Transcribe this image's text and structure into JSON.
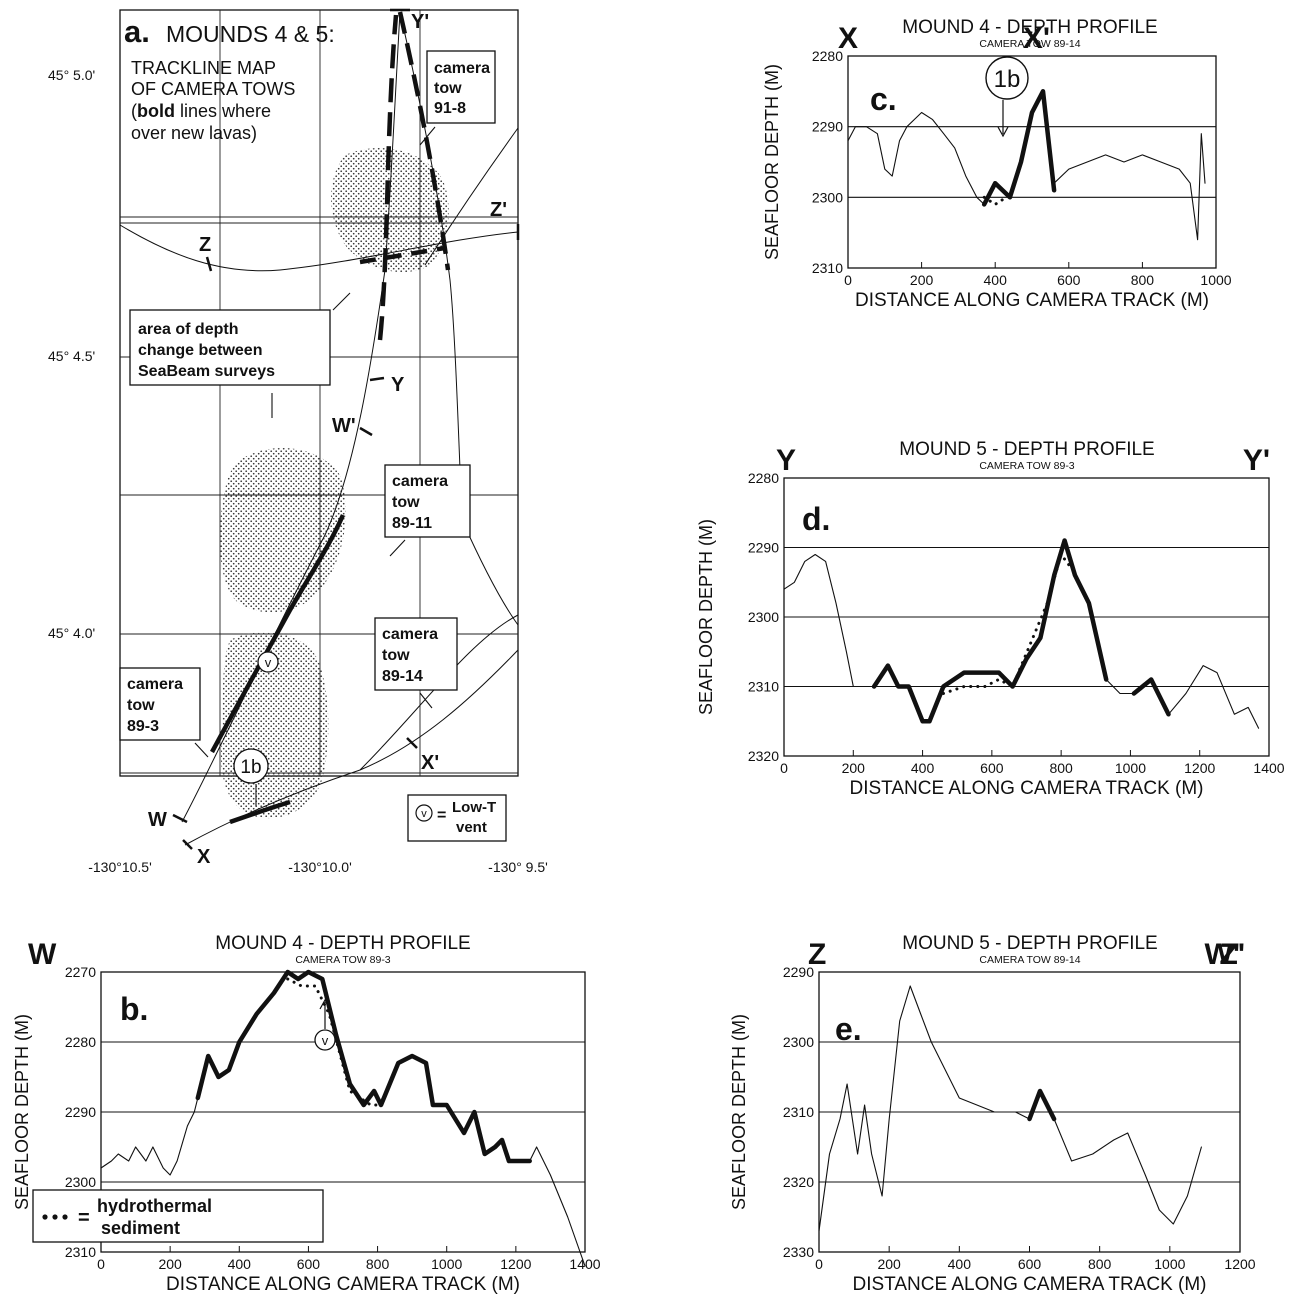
{
  "map": {
    "panel_letter": "a.",
    "title_line1": "MOUNDS 4 & 5:",
    "title_line2": "TRACKLINE MAP",
    "title_line3": "OF CAMERA TOWS",
    "title_line4_bold": "bold",
    "title_line4_rest": " lines where)",
    "title_line4_open": "(",
    "title_line5": "over new lavas)",
    "lat_labels": [
      "45° 5.0'",
      "45° 4.5'",
      "45° 4.0'"
    ],
    "lon_labels": [
      "-130°10.5'",
      "-130°10.0'",
      "-130° 9.5'"
    ],
    "point_labels": [
      "Y'",
      "Z'",
      "Z",
      "Y",
      "W'",
      "X'",
      "W",
      "X"
    ],
    "callout_91_8": [
      "camera",
      "tow",
      "91-8"
    ],
    "callout_89_11": [
      "camera",
      "tow",
      "89-11"
    ],
    "callout_89_14": [
      "camera",
      "tow",
      "89-14"
    ],
    "callout_89_3": [
      "camera",
      "tow",
      "89-3"
    ],
    "callout_area": [
      "area of depth",
      "change between",
      "SeaBeam surveys"
    ],
    "marker_1b": "1b",
    "marker_v": "v",
    "legend_eq": "=",
    "legend_text": [
      "Low-T",
      "vent"
    ]
  },
  "legend_sediment": {
    "eq": "=",
    "lines": [
      "hydrothermal",
      "sediment"
    ]
  },
  "chart_data": [
    {
      "type": "line",
      "panel": "b.",
      "title": "MOUND 4 - DEPTH PROFILE",
      "subtitle": "CAMERA TOW 89-3",
      "left_end": "W",
      "right_end": "W'",
      "xlabel": "DISTANCE ALONG CAMERA TRACK (M)",
      "ylabel": "SEAFLOOR DEPTH (M)",
      "xlim": [
        0,
        1400
      ],
      "ylim": [
        2310,
        2270
      ],
      "xticks": [
        0,
        200,
        400,
        600,
        800,
        1000,
        1200,
        1400
      ],
      "yticks": [
        2270,
        2280,
        2290,
        2300,
        2310
      ],
      "series": [
        {
          "x": [
            0,
            30,
            50,
            80,
            100,
            130,
            150,
            180,
            200,
            220,
            250,
            270,
            280
          ],
          "y": [
            2298,
            2297,
            2296,
            2297,
            2295,
            2297,
            2295,
            2298,
            2299,
            2297,
            2292,
            2290,
            2288
          ]
        },
        {
          "x": [
            280,
            310,
            340,
            370,
            400,
            450,
            500,
            540,
            570,
            600,
            640,
            680,
            720,
            760,
            790,
            810,
            860,
            900,
            940,
            960,
            1000,
            1050,
            1080,
            1110,
            1140,
            1160,
            1180,
            1200,
            1240
          ],
          "y": [
            2288,
            2282,
            2285,
            2284,
            2280,
            2276,
            2273,
            2270,
            2271,
            2270,
            2271,
            2279,
            2286,
            2289,
            2287,
            2289,
            2283,
            2282,
            2283,
            2289,
            2289,
            2293,
            2290,
            2296,
            2295,
            2294,
            2297,
            2297,
            2297
          ]
        },
        {
          "x": [
            1240,
            1260,
            1300,
            1350,
            1400
          ],
          "y": [
            2297,
            2295,
            2299,
            2305,
            2312
          ]
        },
        {
          "x": [
            540,
            580,
            620,
            660,
            720,
            780,
            810
          ],
          "y": [
            2271,
            2272,
            2272,
            2276,
            2287,
            2289,
            2289
          ]
        }
      ],
      "annotations": [
        "v"
      ]
    },
    {
      "type": "line",
      "panel": "c.",
      "title": "MOUND 4 - DEPTH PROFILE",
      "subtitle": "CAMERA TOW 89-14",
      "left_end": "X",
      "right_end": "X'",
      "xlabel": "DISTANCE ALONG CAMERA TRACK (M)",
      "ylabel": "SEAFLOOR DEPTH (M)",
      "xlim": [
        0,
        1000
      ],
      "ylim": [
        2310,
        2280
      ],
      "xticks": [
        0,
        200,
        400,
        600,
        800,
        1000
      ],
      "yticks": [
        2280,
        2290,
        2300,
        2310
      ],
      "series": [
        {
          "x": [
            0,
            20,
            50,
            80,
            100,
            120,
            140,
            160,
            180,
            200,
            230,
            260,
            290,
            320,
            350,
            370
          ],
          "y": [
            2292,
            2290,
            2290,
            2291,
            2296,
            2297,
            2292,
            2290,
            2289,
            2288,
            2289,
            2291,
            2293,
            2297,
            2300,
            2301
          ]
        },
        {
          "x": [
            370,
            400,
            440,
            470,
            500,
            530,
            560
          ],
          "y": [
            2301,
            2298,
            2300,
            2295,
            2288,
            2285,
            2299
          ]
        },
        {
          "x": [
            560,
            600,
            650,
            700,
            750,
            800,
            850,
            900,
            930,
            950,
            960,
            970
          ],
          "y": [
            2298,
            2296,
            2295,
            2294,
            2295,
            2294,
            2295,
            2296,
            2298,
            2306,
            2291,
            2298
          ]
        },
        {
          "x": [
            370,
            400,
            430
          ],
          "y": [
            2300,
            2301,
            2300
          ]
        }
      ],
      "annotations": [
        "1b"
      ]
    },
    {
      "type": "line",
      "panel": "d.",
      "title": "MOUND 5 - DEPTH PROFILE",
      "subtitle": "CAMERA TOW 89-3",
      "left_end": "Y",
      "right_end": "Y'",
      "xlabel": "DISTANCE ALONG CAMERA TRACK (M)",
      "ylabel": "SEAFLOOR DEPTH (M)",
      "xlim": [
        0,
        1400
      ],
      "ylim": [
        2320,
        2280
      ],
      "xticks": [
        0,
        200,
        400,
        600,
        800,
        1000,
        1200,
        1400
      ],
      "yticks": [
        2280,
        2290,
        2300,
        2310,
        2320
      ],
      "series": [
        {
          "x": [
            0,
            30,
            60,
            90,
            120,
            150,
            180,
            200,
            230,
            260
          ],
          "y": [
            2296,
            2295,
            2292,
            2291,
            2292,
            2298,
            2305,
            2310,
            2310,
            2310
          ]
        },
        {
          "x": [
            260,
            300,
            330,
            360,
            400,
            420,
            460,
            520,
            580,
            620,
            660,
            700,
            740,
            780,
            810,
            840,
            880,
            930
          ],
          "y": [
            2310,
            2307,
            2310,
            2310,
            2315,
            2315,
            2310,
            2308,
            2308,
            2308,
            2310,
            2306,
            2303,
            2294,
            2289,
            2294,
            2298,
            2309
          ]
        },
        {
          "x": [
            930,
            970,
            1010
          ],
          "y": [
            2309,
            2311,
            2311
          ]
        },
        {
          "x": [
            1010,
            1060,
            1110
          ],
          "y": [
            2311,
            2309,
            2314
          ]
        },
        {
          "x": [
            1110,
            1160,
            1210,
            1250,
            1300,
            1340,
            1370
          ],
          "y": [
            2314,
            2311,
            2307,
            2308,
            2314,
            2313,
            2316
          ]
        },
        {
          "x": [
            460,
            520,
            580,
            620,
            660,
            760,
            800,
            830
          ],
          "y": [
            2311,
            2310,
            2310,
            2309,
            2310,
            2298,
            2291,
            2293
          ]
        }
      ]
    },
    {
      "type": "line",
      "panel": "e.",
      "title": "MOUND 5 - DEPTH PROFILE",
      "subtitle": "CAMERA TOW 89-14",
      "left_end": "Z",
      "right_end": "Z'",
      "xlabel": "DISTANCE ALONG CAMERA TRACK (M)",
      "ylabel": "SEAFLOOR DEPTH (M)",
      "xlim": [
        0,
        1200
      ],
      "ylim": [
        2330,
        2290
      ],
      "xticks": [
        0,
        200,
        400,
        600,
        800,
        1000,
        1200
      ],
      "yticks": [
        2290,
        2300,
        2310,
        2320,
        2330
      ],
      "series": [
        {
          "x": [
            0,
            30,
            60,
            80,
            110,
            130,
            150,
            180,
            200,
            230,
            260,
            290,
            320,
            360,
            400,
            450,
            500,
            560,
            600
          ],
          "y": [
            2327,
            2316,
            2311,
            2306,
            2316,
            2309,
            2316,
            2322,
            2311,
            2297,
            2292,
            2296,
            2300,
            2304,
            2308,
            2309,
            2310,
            2310,
            2311
          ]
        },
        {
          "x": [
            600,
            630,
            670
          ],
          "y": [
            2311,
            2307,
            2311
          ]
        },
        {
          "x": [
            670,
            720,
            780,
            840,
            880,
            930,
            970,
            1010,
            1050,
            1090
          ],
          "y": [
            2311,
            2317,
            2316,
            2314,
            2313,
            2319,
            2324,
            2326,
            2322,
            2315
          ]
        }
      ]
    }
  ]
}
